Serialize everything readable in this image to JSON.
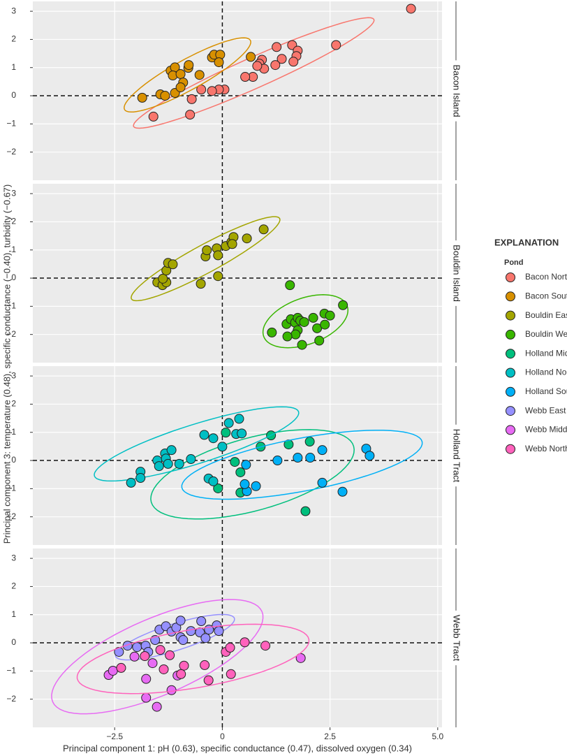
{
  "chart_data": {
    "type": "scatter",
    "xlabel": "Principal component 1: pH (0.63), specific conductance (0.47), dissolved oxygen (0.34)",
    "ylabel": "Principal component 3: temperature (0.48), specific conductance (−0.40), turbidity (−0.67)",
    "xlim": [
      -4.4,
      5.1
    ],
    "ylim": [
      -3,
      3.35
    ],
    "xticks": [
      {
        "value": -2.5,
        "label": "−2.5"
      },
      0,
      2.5,
      {
        "value": 5,
        "label": "5.0"
      }
    ],
    "yticks": [
      {
        "value": -2,
        "label": "−2"
      },
      {
        "value": -1,
        "label": "−1"
      },
      0,
      1,
      2,
      3
    ],
    "grid": true,
    "hlines": [
      0
    ],
    "vlines": [
      0
    ],
    "legend_title": "EXPLANATION",
    "legend_subtitle": "Pond",
    "legend_position": "right",
    "panels": [
      "Bacon Island",
      "Bouldin Island",
      "Holland Tract",
      "Webb Tract"
    ],
    "series": [
      {
        "name": "Bacon North",
        "color": "#F8766D",
        "panel": 0,
        "x": [
          4.38,
          2.64,
          1.62,
          1.75,
          1.72,
          1.65,
          1.26,
          1.38,
          1.23,
          0.92,
          0.86,
          0.97,
          0.81,
          0.71,
          0.53,
          0.05,
          -0.08,
          -0.24,
          -0.49,
          -0.71,
          -0.75,
          -1.6
        ],
        "y": [
          3.09,
          1.8,
          1.8,
          1.6,
          1.41,
          1.21,
          1.73,
          1.31,
          1.09,
          1.28,
          1.14,
          0.96,
          1.06,
          0.67,
          0.67,
          0.22,
          0.22,
          0.17,
          0.22,
          -0.12,
          -0.67,
          -0.74
        ],
        "ellipse": {
          "center": [
            0.73,
            0.81
          ],
          "axis1": [
            2.79,
            1.9
          ],
          "axis2": [
            0.15,
            -0.49
          ]
        }
      },
      {
        "name": "Bacon South",
        "color": "#D89000",
        "panel": 0,
        "x": [
          -1.86,
          -1.44,
          -1.33,
          -1.1,
          -1.2,
          -1.1,
          -1.15,
          -0.97,
          -0.91,
          -0.97,
          -0.79,
          -0.78,
          -0.53,
          -0.24,
          -0.19,
          -0.05,
          -0.08,
          0.66
        ],
        "y": [
          -0.07,
          0.05,
          0,
          0.1,
          0.89,
          1.01,
          0.72,
          0.77,
          0.47,
          0.3,
          0.99,
          1.09,
          0.74,
          1.36,
          1.46,
          1.46,
          1.19,
          1.38
        ],
        "ellipse": {
          "center": [
            -0.81,
            0.74
          ],
          "axis1": [
            1.46,
            1.23
          ],
          "axis2": [
            0.17,
            -0.47
          ]
        }
      },
      {
        "name": "Bouldin East",
        "color": "#A3A500",
        "panel": 1,
        "x": [
          -1.51,
          -1.39,
          -1.3,
          -1.38,
          -1.3,
          -1.26,
          -1.15,
          -0.5,
          -0.39,
          -0.36,
          -0.13,
          -0.1,
          -0.1,
          0.08,
          0.21,
          0.26,
          0.23,
          0.57,
          0.96
        ],
        "y": [
          -0.15,
          -0.25,
          -0.15,
          -0.02,
          0.27,
          0.54,
          0.49,
          -0.2,
          0.77,
          0.99,
          1.06,
          0.81,
          0.07,
          1.14,
          1.28,
          1.46,
          1.21,
          1.41,
          1.73
        ],
        "ellipse": {
          "center": [
            -0.39,
            0.69
          ],
          "axis1": [
            1.72,
            1.43
          ],
          "axis2": [
            0.16,
            -0.43
          ]
        }
      },
      {
        "name": "Bouldin West",
        "color": "#39B600",
        "panel": 1,
        "x": [
          1.57,
          1.15,
          1.49,
          1.59,
          1.69,
          1.75,
          1.81,
          1.9,
          1.75,
          1.7,
          1.51,
          1.85,
          2.11,
          2.2,
          2.38,
          2.37,
          2.5,
          2.25,
          2.8
        ],
        "y": [
          -0.25,
          -1.93,
          -1.63,
          -1.46,
          -1.58,
          -1.41,
          -1.51,
          -1.56,
          -1.85,
          -2.0,
          -2.07,
          -2.37,
          -1.41,
          -1.78,
          -1.65,
          -1.26,
          -1.33,
          -2.22,
          -0.96
        ],
        "ellipse": {
          "center": [
            1.93,
            -1.53
          ],
          "axis1": [
            0.97,
            0.54
          ],
          "axis2": [
            0.18,
            -0.77
          ]
        }
      },
      {
        "name": "Holland Middle",
        "color": "#00BF7D",
        "panel": 2,
        "x": [
          -0.1,
          0.08,
          0.29,
          0.42,
          0.42,
          0.89,
          1.13,
          1.54,
          2.03,
          1.93
        ],
        "y": [
          -0.99,
          0.99,
          -0.05,
          -0.42,
          -1.14,
          0.49,
          0.89,
          0.57,
          0.67,
          -1.8
        ],
        "ellipse": {
          "center": [
            0.7,
            -0.49
          ],
          "axis1": [
            2.35,
            0.99
          ],
          "axis2": [
            0.23,
            -1.24
          ]
        }
      },
      {
        "name": "Holland North",
        "color": "#00BFC4",
        "panel": 2,
        "x": [
          -2.12,
          -1.9,
          -1.9,
          -1.51,
          -1.47,
          -1.33,
          -1.31,
          -1.18,
          -1.26,
          -1.0,
          -0.73,
          -0.42,
          -0.21,
          0.15,
          0.39,
          0.32,
          0.45,
          0.0,
          -0.32,
          -0.21
        ],
        "y": [
          -0.79,
          -0.4,
          -0.62,
          0,
          -0.2,
          0.25,
          0.07,
          0.37,
          -0.12,
          -0.12,
          0.05,
          0.91,
          0.79,
          1.33,
          1.48,
          0.94,
          0.96,
          0.49,
          -0.64,
          -0.74
        ],
        "ellipse": {
          "center": [
            -0.6,
            0.59
          ],
          "axis1": [
            2.37,
            1.14
          ],
          "axis2": [
            0.14,
            -0.66
          ]
        }
      },
      {
        "name": "Holland South",
        "color": "#00B0F6",
        "panel": 2,
        "x": [
          0.55,
          0.57,
          0.78,
          0.52,
          1.28,
          1.75,
          2.04,
          2.32,
          2.32,
          2.79,
          3.34,
          3.42
        ],
        "y": [
          -0.15,
          -1.09,
          -0.91,
          -0.84,
          0,
          0.1,
          0.1,
          0.37,
          -0.79,
          -1.11,
          0.42,
          0.17
        ],
        "ellipse": {
          "center": [
            1.85,
            -0.15
          ],
          "axis1": [
            2.79,
            0.81
          ],
          "axis2": [
            0.12,
            -0.92
          ]
        }
      },
      {
        "name": "Webb East",
        "color": "#9590FF",
        "panel": 3,
        "x": [
          -2.4,
          -2.2,
          -1.98,
          -1.78,
          -1.72,
          -1.56,
          -1.46,
          -1.31,
          -1.18,
          -1.07,
          -0.97,
          -0.97,
          -0.91,
          -0.73,
          -0.52,
          -0.49,
          -0.39,
          -0.31,
          -0.13,
          -0.08
        ],
        "y": [
          -0.32,
          -0.1,
          -0.15,
          -0.1,
          -0.32,
          0.1,
          0.47,
          0.59,
          0.4,
          0.54,
          0.79,
          0.2,
          0.1,
          0.42,
          0.37,
          0.77,
          0.17,
          0.47,
          0.62,
          0.42
        ],
        "ellipse": {
          "center": [
            -1.1,
            0.2
          ],
          "axis1": [
            1.38,
            0.67
          ],
          "axis2": [
            0.09,
            -0.45
          ]
        }
      },
      {
        "name": "Webb Middle",
        "color": "#E76BF3",
        "panel": 3,
        "x": [
          -2.64,
          -2.54,
          -2.04,
          -1.77,
          -1.77,
          -1.52,
          -1.62,
          -1.18,
          -1.04,
          1.82
        ],
        "y": [
          -1.14,
          -0.99,
          -0.49,
          -1.28,
          -1.95,
          -2.27,
          -0.72,
          -1.68,
          -1.16,
          -0.54
        ],
        "ellipse": {
          "center": [
            -1.51,
            -0.49
          ],
          "axis1": [
            2.43,
            1.6
          ],
          "axis2": [
            0.35,
            -1.25
          ]
        }
      },
      {
        "name": "Webb North",
        "color": "#FF62BC",
        "panel": 3,
        "x": [
          -2.35,
          -1.8,
          -1.44,
          -1.36,
          -1.22,
          -0.89,
          -0.96,
          -0.41,
          -0.32,
          0.08,
          0.2,
          0.18,
          0.52,
          1.0
        ],
        "y": [
          -0.89,
          -0.47,
          -0.25,
          -0.94,
          -0.44,
          -0.81,
          -1.11,
          -0.79,
          -1.33,
          -0.32,
          -1.11,
          -0.17,
          0.02,
          -0.1
        ],
        "ellipse": {
          "center": [
            -0.68,
            -0.57
          ],
          "axis1": [
            2.69,
            0.69
          ],
          "axis2": [
            0.11,
            -1.02
          ]
        }
      }
    ]
  }
}
